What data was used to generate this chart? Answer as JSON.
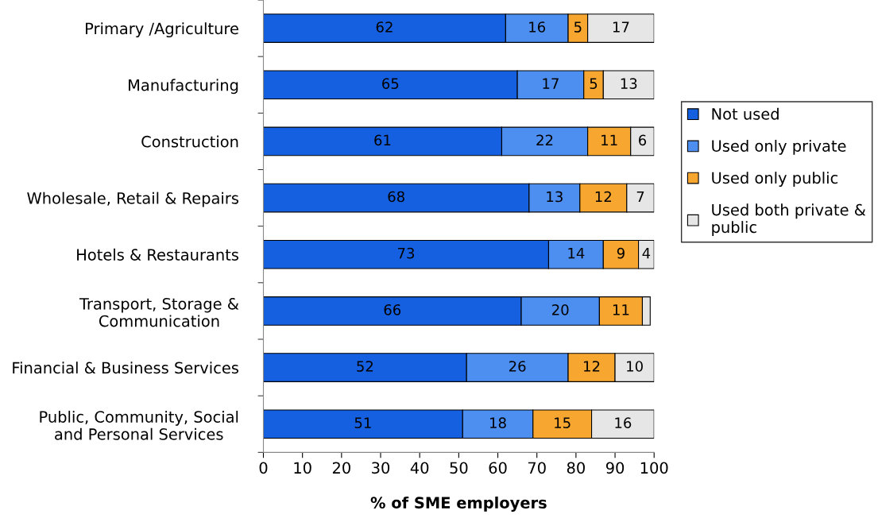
{
  "chart_data": {
    "type": "bar",
    "orientation": "horizontal",
    "stacked": true,
    "categories": [
      "Primary /Agriculture",
      "Manufacturing",
      "Construction",
      "Wholesale, Retail & Repairs",
      "Hotels & Restaurants",
      "Transport, Storage &\nCommunication",
      "Financial & Business Services",
      "Public, Community, Social\nand Personal Services"
    ],
    "series": [
      {
        "name": "Not used",
        "color": "#1560e0",
        "values": [
          62,
          65,
          61,
          68,
          73,
          66,
          52,
          51
        ],
        "value_labels": [
          "62",
          "65",
          "61",
          "68",
          "73",
          "66",
          "52",
          "51"
        ]
      },
      {
        "name": "Used only private",
        "color": "#4d8ff0",
        "values": [
          16,
          17,
          22,
          13,
          14,
          20,
          26,
          18
        ],
        "value_labels": [
          "16",
          "17",
          "22",
          "13",
          "14",
          "20",
          "26",
          "18"
        ]
      },
      {
        "name": "Used only public",
        "color": "#f7a730",
        "values": [
          5,
          5,
          11,
          12,
          9,
          11,
          12,
          15
        ],
        "value_labels": [
          "5",
          "5",
          "11",
          "12",
          "9",
          "11",
          "12",
          "15"
        ]
      },
      {
        "name": "Used both private & public",
        "color": "#e6e6e6",
        "values": [
          17,
          13,
          6,
          7,
          4,
          2,
          10,
          16
        ],
        "value_labels": [
          "17",
          "13",
          "6",
          "7",
          "4",
          null,
          "10",
          "16"
        ]
      }
    ],
    "xlabel": "% of SME employers",
    "xlim": [
      0,
      100
    ],
    "xticks": [
      0,
      10,
      20,
      30,
      40,
      50,
      60,
      70,
      80,
      90,
      100
    ],
    "grid": false,
    "legend": "right"
  }
}
